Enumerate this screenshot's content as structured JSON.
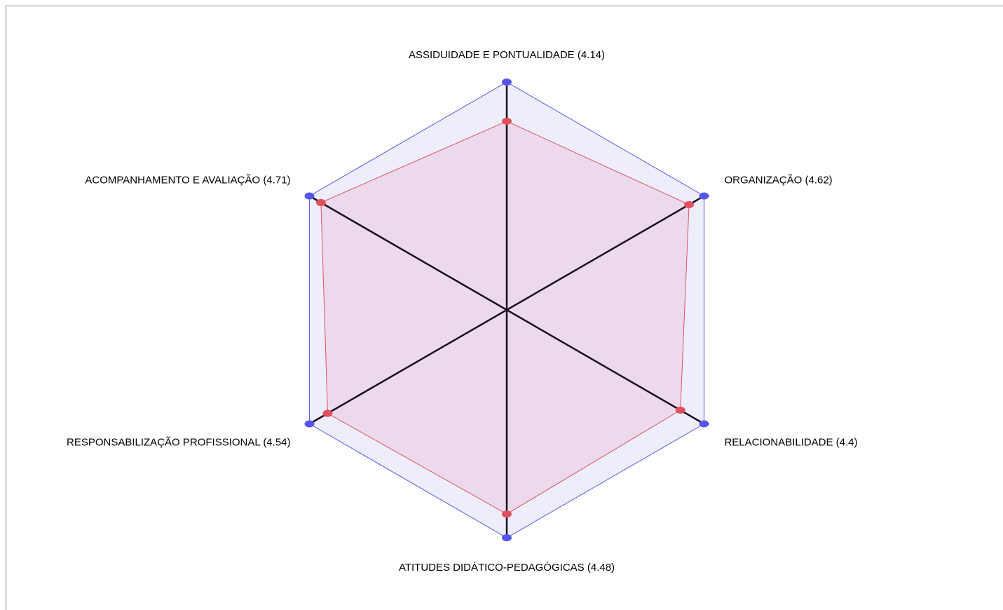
{
  "chart_data": {
    "type": "radar",
    "categories": [
      "ASSIDUIDADE E PONTUALIDADE (4.14)",
      "ORGANIZAÇÃO (4.62)",
      "RELACIONABILIDADE (4.4)",
      "ATITUDES DIDÁTICO-PEDAGÓGICAS (4.48)",
      "RESPONSABILIZAÇÃO PROFISSIONAL (4.54)",
      "ACOMPANHAMENTO E AVALIAÇÃO (4.71)"
    ],
    "ylim": [
      0,
      5
    ],
    "series": [
      {
        "color": "#5555ee",
        "fill": "#eeeefb",
        "values": [
          5,
          5,
          5,
          5,
          5,
          5
        ]
      },
      {
        "color": "#e0505f",
        "fill": "rgba(230,160,190,0.25)",
        "values": [
          4.14,
          4.62,
          4.4,
          4.48,
          4.54,
          4.71
        ]
      }
    ]
  }
}
